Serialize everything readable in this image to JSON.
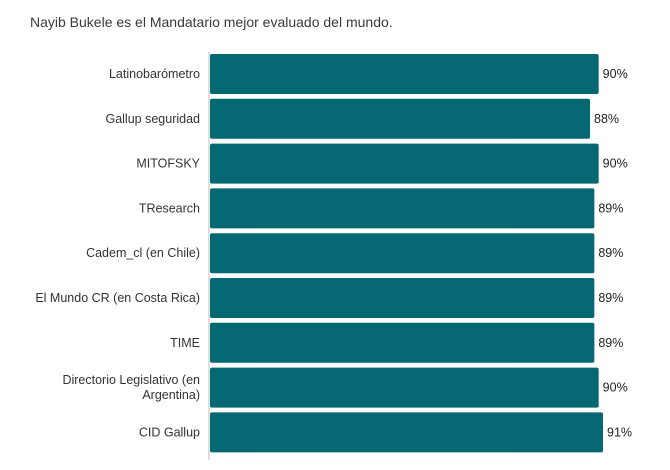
{
  "chart_data": {
    "type": "bar",
    "orientation": "horizontal",
    "title": "Nayib Bukele es el Mandatario mejor evaluado del mundo.",
    "categories": [
      "Latinobarómetro",
      "Gallup seguridad",
      "MITOFSKY",
      "TResearch",
      "Cadem_cl (en Chile)",
      "El Mundo CR (en Costa Rica)",
      "TIME",
      [
        "Directorio Legislativo (en",
        "Argentina)"
      ],
      "CID Gallup"
    ],
    "values": [
      90,
      88,
      90,
      89,
      89,
      89,
      89,
      90,
      91
    ],
    "value_labels": [
      "90%",
      "88%",
      "90%",
      "89%",
      "89%",
      "89%",
      "89%",
      "90%",
      "91%"
    ],
    "xlim": [
      0,
      91
    ],
    "bar_color": "#066872",
    "grid": false,
    "legend": "none"
  }
}
